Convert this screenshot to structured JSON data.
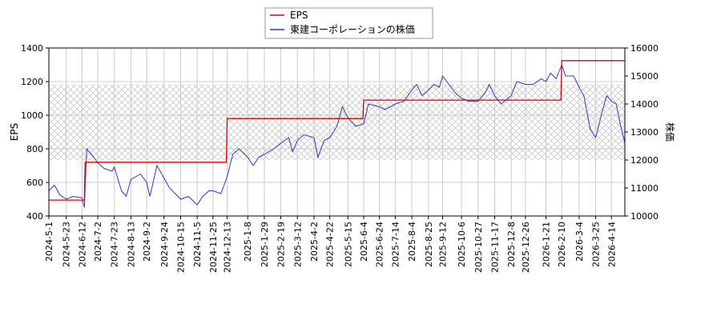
{
  "chart_data": {
    "type": "line",
    "ylabel_left": "EPS",
    "ylabel_right": "株価",
    "legend_placement": "top-center",
    "grid": true,
    "ylim_left": [
      400,
      1400
    ],
    "ylim_right": [
      10000,
      16000
    ],
    "yticks_left": [
      "400",
      "600",
      "800",
      "1000",
      "1200",
      "1400"
    ],
    "yticks_right": [
      "10000",
      "11000",
      "12000",
      "13000",
      "14000",
      "15000",
      "16000"
    ],
    "xlim": [
      "2024-05-01",
      "2026-05-01"
    ],
    "xticks": [
      "2024-5-1",
      "2024-5-23",
      "2024-6-12",
      "2024-7-2",
      "2024-7-23",
      "2024-8-13",
      "2024-9-2",
      "2024-9-24",
      "2024-10-15",
      "2024-11-5",
      "2024-11-25",
      "2024-12-13",
      "2025-1-8",
      "2025-1-29",
      "2025-2-19",
      "2025-3-12",
      "2025-4-2",
      "2025-4-22",
      "2025-5-15",
      "2025-6-4",
      "2025-6-24",
      "2025-7-14",
      "2025-8-4",
      "2025-8-25",
      "2025-9-12",
      "2025-10-6",
      "2025-10-27",
      "2025-11-17",
      "2025-12-8",
      "2025-12-26",
      "2026-1-21",
      "2026-2-10",
      "2026-3-4",
      "2026-3-25",
      "2026-4-14"
    ],
    "hatch_band_right_axis": [
      12000,
      14700
    ],
    "series": [
      {
        "name": "EPS",
        "axis": "left",
        "color": "#dd0000",
        "step": true,
        "points": [
          [
            "2024-05-01",
            495
          ],
          [
            "2024-06-15",
            495
          ],
          [
            "2024-06-16",
            720
          ],
          [
            "2024-12-12",
            720
          ],
          [
            "2024-12-13",
            980
          ],
          [
            "2025-06-03",
            980
          ],
          [
            "2025-06-04",
            1090
          ],
          [
            "2026-02-09",
            1090
          ],
          [
            "2026-02-10",
            1325
          ],
          [
            "2026-05-01",
            1325
          ]
        ]
      },
      {
        "name": "東建コーポレーションの株価",
        "axis": "right",
        "color": "#3333cc",
        "points": [
          [
            "2024-05-01",
            10900
          ],
          [
            "2024-05-08",
            11100
          ],
          [
            "2024-05-15",
            10750
          ],
          [
            "2024-05-23",
            10600
          ],
          [
            "2024-06-01",
            10700
          ],
          [
            "2024-06-12",
            10650
          ],
          [
            "2024-06-15",
            10300
          ],
          [
            "2024-06-18",
            12400
          ],
          [
            "2024-06-24",
            12200
          ],
          [
            "2024-07-02",
            11900
          ],
          [
            "2024-07-10",
            11700
          ],
          [
            "2024-07-20",
            11600
          ],
          [
            "2024-07-23",
            11750
          ],
          [
            "2024-08-01",
            10900
          ],
          [
            "2024-08-07",
            10700
          ],
          [
            "2024-08-13",
            11300
          ],
          [
            "2024-08-25",
            11500
          ],
          [
            "2024-09-02",
            11200
          ],
          [
            "2024-09-06",
            10700
          ],
          [
            "2024-09-15",
            11800
          ],
          [
            "2024-09-24",
            11350
          ],
          [
            "2024-10-01",
            11000
          ],
          [
            "2024-10-15",
            10600
          ],
          [
            "2024-10-25",
            10700
          ],
          [
            "2024-11-05",
            10400
          ],
          [
            "2024-11-12",
            10700
          ],
          [
            "2024-11-20",
            10900
          ],
          [
            "2024-11-25",
            10900
          ],
          [
            "2024-12-05",
            10800
          ],
          [
            "2024-12-13",
            11400
          ],
          [
            "2024-12-20",
            12200
          ],
          [
            "2024-12-28",
            12400
          ],
          [
            "2025-01-08",
            12100
          ],
          [
            "2025-01-15",
            11800
          ],
          [
            "2025-01-22",
            12100
          ],
          [
            "2025-01-29",
            12200
          ],
          [
            "2025-02-10",
            12400
          ],
          [
            "2025-02-19",
            12600
          ],
          [
            "2025-03-01",
            12800
          ],
          [
            "2025-03-06",
            12300
          ],
          [
            "2025-03-12",
            12700
          ],
          [
            "2025-03-20",
            12900
          ],
          [
            "2025-04-02",
            12800
          ],
          [
            "2025-04-07",
            12100
          ],
          [
            "2025-04-15",
            12700
          ],
          [
            "2025-04-22",
            12800
          ],
          [
            "2025-05-01",
            13200
          ],
          [
            "2025-05-08",
            13900
          ],
          [
            "2025-05-15",
            13500
          ],
          [
            "2025-05-25",
            13200
          ],
          [
            "2025-06-04",
            13300
          ],
          [
            "2025-06-10",
            14000
          ],
          [
            "2025-06-24",
            13900
          ],
          [
            "2025-07-01",
            13800
          ],
          [
            "2025-07-14",
            14000
          ],
          [
            "2025-07-25",
            14100
          ],
          [
            "2025-08-04",
            14500
          ],
          [
            "2025-08-10",
            14700
          ],
          [
            "2025-08-17",
            14300
          ],
          [
            "2025-08-25",
            14500
          ],
          [
            "2025-09-01",
            14700
          ],
          [
            "2025-09-08",
            14600
          ],
          [
            "2025-09-12",
            15000
          ],
          [
            "2025-09-20",
            14700
          ],
          [
            "2025-09-28",
            14400
          ],
          [
            "2025-10-06",
            14200
          ],
          [
            "2025-10-15",
            14100
          ],
          [
            "2025-10-27",
            14100
          ],
          [
            "2025-11-05",
            14400
          ],
          [
            "2025-11-10",
            14700
          ],
          [
            "2025-11-17",
            14300
          ],
          [
            "2025-11-25",
            14000
          ],
          [
            "2025-12-08",
            14300
          ],
          [
            "2025-12-15",
            14800
          ],
          [
            "2025-12-26",
            14700
          ],
          [
            "2026-01-05",
            14700
          ],
          [
            "2026-01-15",
            14900
          ],
          [
            "2026-01-21",
            14800
          ],
          [
            "2026-01-27",
            15100
          ],
          [
            "2026-02-03",
            14900
          ],
          [
            "2026-02-10",
            15400
          ],
          [
            "2026-02-15",
            15000
          ],
          [
            "2026-02-25",
            15000
          ],
          [
            "2026-03-04",
            14600
          ],
          [
            "2026-03-10",
            14300
          ],
          [
            "2026-03-18",
            13100
          ],
          [
            "2026-03-25",
            12800
          ],
          [
            "2026-04-02",
            13700
          ],
          [
            "2026-04-08",
            14300
          ],
          [
            "2026-04-14",
            14100
          ],
          [
            "2026-04-20",
            14000
          ],
          [
            "2026-04-25",
            13300
          ],
          [
            "2026-05-01",
            12600
          ]
        ]
      }
    ]
  }
}
